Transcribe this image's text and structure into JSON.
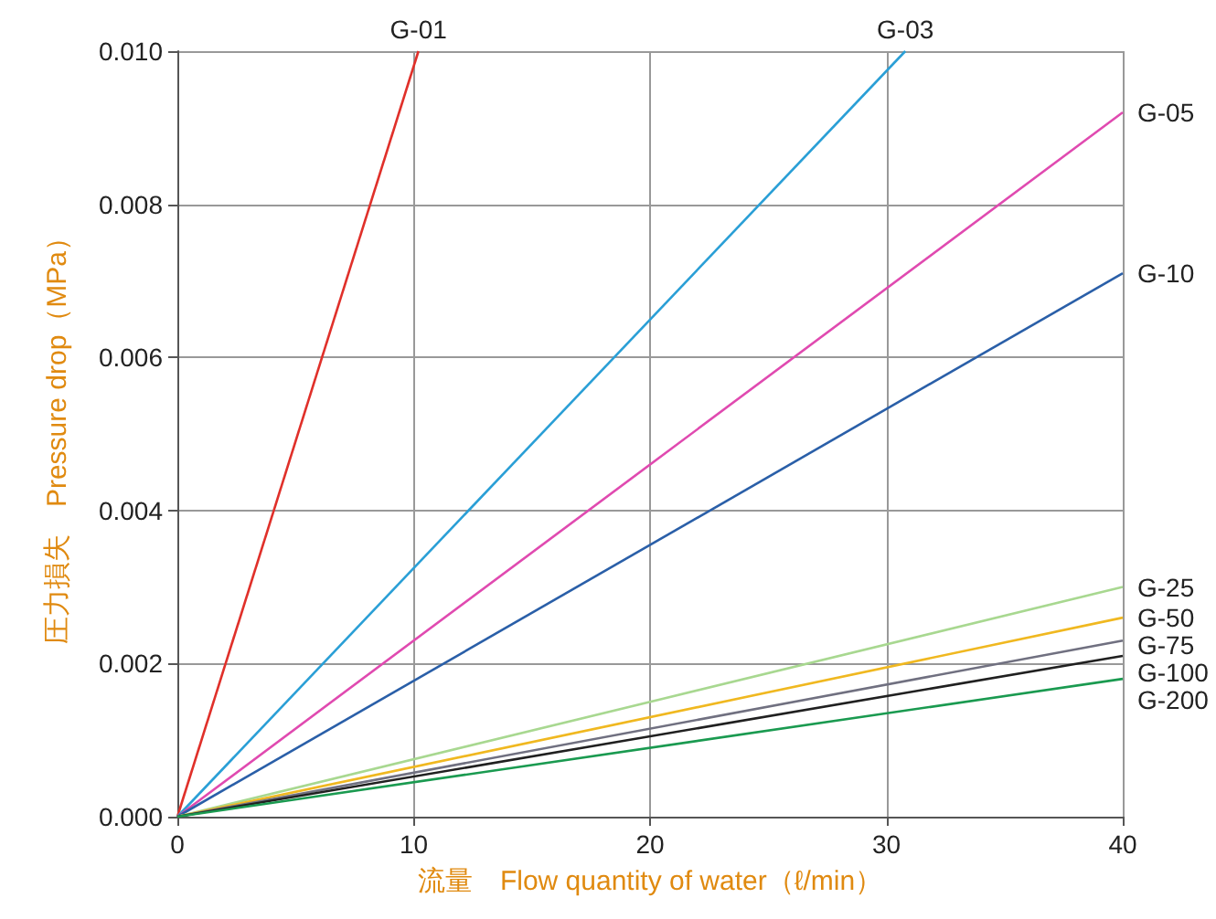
{
  "chart_data": {
    "type": "line",
    "xlabel": "流量　Flow quantity of water（ℓ/min）",
    "ylabel": "圧力損失　Pressure drop（MPa）",
    "xlim": [
      0,
      40
    ],
    "xticks": [
      0,
      10,
      20,
      30,
      40
    ],
    "ylim": [
      0,
      0.01
    ],
    "yticks": [
      {
        "value": 0,
        "label": "0.000"
      },
      0.002,
      0.004,
      0.006,
      0.008,
      {
        "value": 0.01,
        "label": "0.010"
      }
    ],
    "grid": true,
    "legend": false,
    "line_style": "solid",
    "series": [
      {
        "name": "G-01",
        "color": "#e0302a",
        "x": [
          0,
          10.2
        ],
        "values": [
          0,
          0.01
        ]
      },
      {
        "name": "G-03",
        "color": "#2a9fd6",
        "x": [
          0,
          30.8
        ],
        "values": [
          0,
          0.01
        ]
      },
      {
        "name": "G-05",
        "color": "#e04ab0",
        "x": [
          0,
          40
        ],
        "values": [
          0,
          0.0092
        ]
      },
      {
        "name": "G-10",
        "color": "#2a5fa8",
        "x": [
          0,
          40
        ],
        "values": [
          0,
          0.0071
        ]
      },
      {
        "name": "G-25",
        "color": "#a8d890",
        "x": [
          0,
          40
        ],
        "values": [
          0,
          0.003
        ]
      },
      {
        "name": "G-50",
        "color": "#f0b820",
        "x": [
          0,
          40
        ],
        "values": [
          0,
          0.0026
        ]
      },
      {
        "name": "G-75",
        "color": "#707080",
        "x": [
          0,
          40
        ],
        "values": [
          0,
          0.0023
        ]
      },
      {
        "name": "G-100",
        "color": "#202020",
        "x": [
          0,
          40
        ],
        "values": [
          0,
          0.0021
        ]
      },
      {
        "name": "G-200",
        "color": "#1a9a50",
        "x": [
          0,
          40
        ],
        "values": [
          0,
          0.0018
        ]
      }
    ]
  }
}
